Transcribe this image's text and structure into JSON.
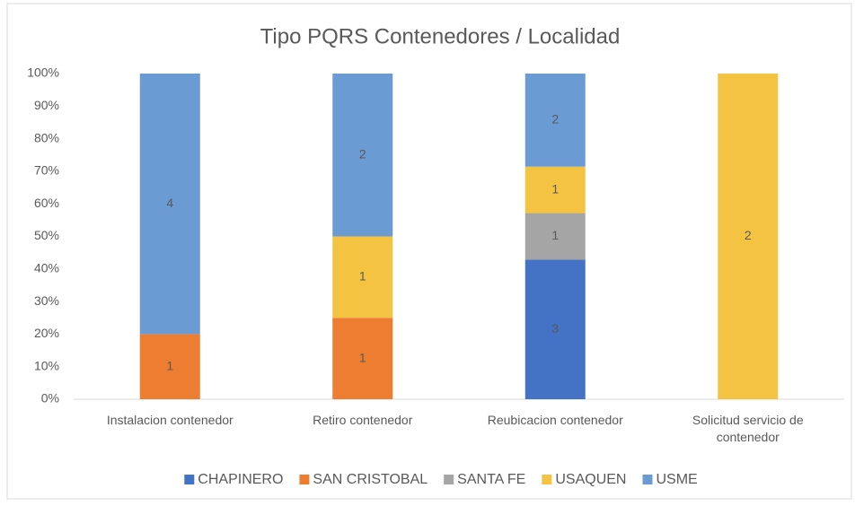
{
  "chart_data": {
    "type": "bar",
    "stacking": "percent",
    "title": "Tipo PQRS Contenedores / Localidad",
    "categories": [
      "Instalacion contenedor",
      "Retiro contenedor",
      "Reubicacion contenedor",
      "Solicitud servicio de contenedor"
    ],
    "series": [
      {
        "name": "CHAPINERO",
        "color": "#4472c4",
        "values": [
          null,
          null,
          3,
          null
        ]
      },
      {
        "name": "SAN CRISTOBAL",
        "color": "#ed7d31",
        "values": [
          1,
          1,
          null,
          null
        ]
      },
      {
        "name": "SANTA FE",
        "color": "#a5a5a5",
        "values": [
          null,
          null,
          1,
          null
        ]
      },
      {
        "name": "USAQUEN",
        "color": "#f5c342",
        "values": [
          null,
          1,
          1,
          2
        ]
      },
      {
        "name": "USME",
        "color": "#6a9bd2",
        "values": [
          4,
          2,
          2,
          null
        ]
      }
    ],
    "ylim": [
      0,
      100
    ],
    "yticks": [
      {
        "value": 0,
        "label": "0%"
      },
      {
        "value": 10,
        "label": "10%"
      },
      {
        "value": 20,
        "label": "20%"
      },
      {
        "value": 30,
        "label": "30%"
      },
      {
        "value": 40,
        "label": "40%"
      },
      {
        "value": 50,
        "label": "50%"
      },
      {
        "value": 60,
        "label": "60%"
      },
      {
        "value": 70,
        "label": "70%"
      },
      {
        "value": 80,
        "label": "80%"
      },
      {
        "value": 90,
        "label": "90%"
      },
      {
        "value": 100,
        "label": "100%"
      }
    ],
    "grid": false,
    "legend": "bottom"
  }
}
